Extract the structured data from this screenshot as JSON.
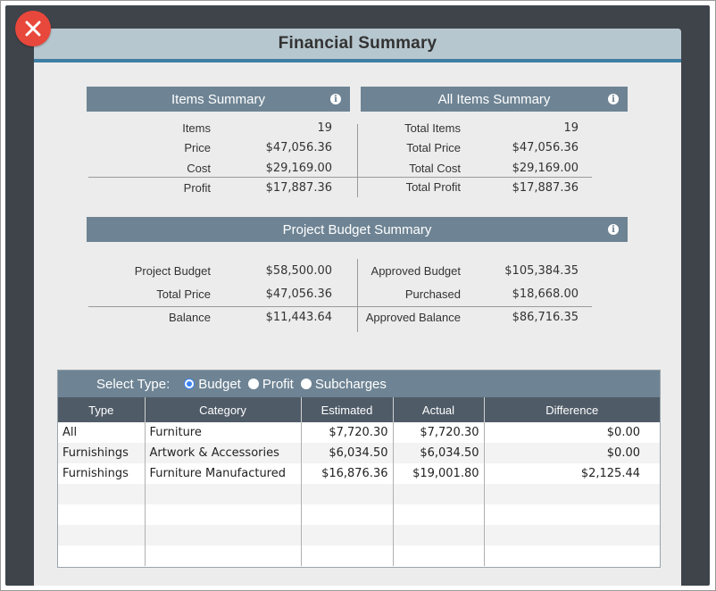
{
  "modal": {
    "title": "Financial Summary"
  },
  "items_summary": {
    "title": "Items Summary",
    "rows": [
      {
        "label": "Items",
        "value": "19"
      },
      {
        "label": "Price",
        "value": "$47,056.36"
      },
      {
        "label": "Cost",
        "value": "$29,169.00"
      },
      {
        "label": "Profit",
        "value": "$17,887.36"
      }
    ]
  },
  "all_items_summary": {
    "title": "All Items Summary",
    "rows": [
      {
        "label": "Total Items",
        "value": "19"
      },
      {
        "label": "Total Price",
        "value": "$47,056.36"
      },
      {
        "label": "Total Cost",
        "value": "$29,169.00"
      },
      {
        "label": "Total Profit",
        "value": "$17,887.36"
      }
    ]
  },
  "project_budget": {
    "title": "Project Budget Summary",
    "left": [
      {
        "label": "Project Budget",
        "value": "$58,500.00"
      },
      {
        "label": "Total Price",
        "value": "$47,056.36"
      },
      {
        "label": "Balance",
        "value": "$11,443.64"
      }
    ],
    "right": [
      {
        "label": "Approved Budget",
        "value": "$105,384.35"
      },
      {
        "label": "Purchased",
        "value": "$18,668.00"
      },
      {
        "label": "Approved Balance",
        "value": "$86,716.35"
      }
    ]
  },
  "select_type": {
    "label": "Select Type:",
    "options": [
      "Budget",
      "Profit",
      "Subcharges"
    ],
    "selected": "Budget"
  },
  "table": {
    "headers": [
      "Type",
      "Category",
      "Estimated",
      "Actual",
      "Difference"
    ],
    "rows": [
      [
        "All",
        "Furniture",
        "$7,720.30",
        "$7,720.30",
        "$0.00"
      ],
      [
        "Furnishings",
        "Artwork & Accessories",
        "$6,034.50",
        "$6,034.50",
        "$0.00"
      ],
      [
        "Furnishings",
        "Furniture Manufactured",
        "$16,876.36",
        "$19,001.80",
        "$2,125.44"
      ]
    ]
  },
  "colors": {
    "close_button": "#e8473b",
    "header_bg": "#b7c7cf",
    "header_accent": "#3f7ea4",
    "section_bar": "#6e8494",
    "table_header": "#4f5b67"
  },
  "icons": {
    "close": "close-icon",
    "info": "info-icon"
  }
}
